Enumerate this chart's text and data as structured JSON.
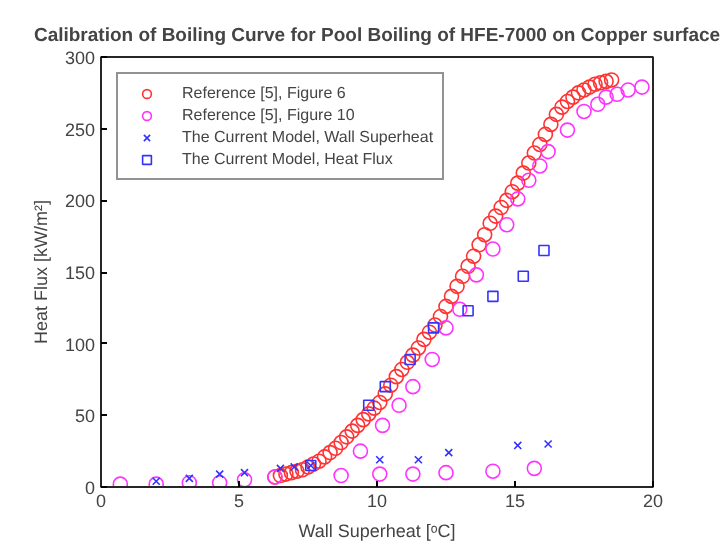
{
  "chart_data": {
    "type": "scatter",
    "title": "Calibration of Boiling Curve for Pool Boiling of HFE-7000 on Copper surface",
    "xlabel": "Wall Superheat [ᵒC]",
    "ylabel": "Heat Flux [kW/m²]",
    "xlim": [
      0,
      20
    ],
    "ylim": [
      0,
      300
    ],
    "xticks": [
      0,
      5,
      10,
      15,
      20
    ],
    "yticks": [
      0,
      50,
      100,
      150,
      200,
      250,
      300
    ],
    "grid": false,
    "legend": "top left",
    "series": [
      {
        "name": "Reference [5], Figure 6",
        "color": "#ff3333",
        "marker": "circle",
        "x": [
          6.3,
          6.5,
          6.7,
          6.9,
          7.1,
          7.3,
          7.5,
          7.7,
          7.9,
          8.1,
          8.3,
          8.5,
          8.7,
          8.9,
          9.1,
          9.3,
          9.5,
          9.7,
          9.9,
          10.1,
          10.3,
          10.5,
          10.7,
          10.9,
          11.1,
          11.3,
          11.5,
          11.7,
          11.9,
          12.1,
          12.3,
          12.5,
          12.7,
          12.9,
          13.1,
          13.3,
          13.5,
          13.7,
          13.9,
          14.1,
          14.3,
          14.5,
          14.7,
          14.9,
          15.1,
          15.3,
          15.5,
          15.7,
          15.9,
          16.1,
          16.3,
          16.5,
          16.7,
          16.9,
          17.1,
          17.3,
          17.5,
          17.7,
          17.9,
          18.1,
          18.3,
          18.5
        ],
        "values": [
          7,
          8,
          9,
          10,
          11,
          12,
          14,
          16,
          18,
          21,
          24,
          27,
          31,
          35,
          39,
          43,
          47,
          51,
          55,
          59,
          65,
          71,
          77,
          82,
          87,
          92,
          97,
          103,
          108,
          113,
          119,
          126,
          133,
          140,
          147,
          154,
          161,
          169,
          176,
          184,
          189,
          195,
          200,
          206,
          212,
          219,
          226,
          233,
          239,
          246,
          253,
          260,
          265,
          269,
          272,
          275,
          277,
          279,
          281,
          282,
          283,
          284
        ]
      },
      {
        "name": "Reference [5], Figure 10",
        "color": "#ff33ff",
        "marker": "circle",
        "x": [
          0.7,
          2.0,
          3.2,
          4.3,
          5.2,
          6.3,
          8.7,
          9.4,
          10.1,
          10.2,
          10.8,
          11.3,
          11.3,
          12.0,
          12.5,
          12.5,
          13.0,
          13.6,
          14.2,
          14.2,
          14.7,
          15.1,
          15.5,
          15.7,
          15.9,
          16.2,
          16.9,
          17.5,
          18.0,
          18.3,
          18.7,
          19.1,
          19.6
        ],
        "values": [
          2,
          2,
          3,
          3,
          5,
          7,
          8,
          25,
          9,
          43,
          57,
          70,
          9,
          89,
          111,
          10,
          124,
          148,
          166,
          11,
          183,
          201,
          214,
          13,
          224,
          234,
          249,
          262,
          267,
          272,
          274,
          277,
          279
        ]
      },
      {
        "name": "The Current Model, Wall Superheat",
        "color": "#3333ff",
        "marker": "cross",
        "x": [
          2.0,
          3.2,
          4.3,
          5.2,
          6.5,
          7.0,
          7.6,
          10.1,
          11.5,
          12.6,
          15.1,
          16.2
        ],
        "values": [
          4,
          6,
          9,
          10,
          13,
          14,
          15,
          19,
          19,
          24,
          29,
          30
        ]
      },
      {
        "name": "The Current Model, Heat Flux",
        "color": "#3333ff",
        "marker": "square",
        "x": [
          7.6,
          9.7,
          10.3,
          11.2,
          12.05,
          13.3,
          14.2,
          15.3,
          16.05
        ],
        "values": [
          15,
          57,
          70,
          89,
          111,
          123,
          133,
          147,
          165
        ]
      }
    ]
  }
}
